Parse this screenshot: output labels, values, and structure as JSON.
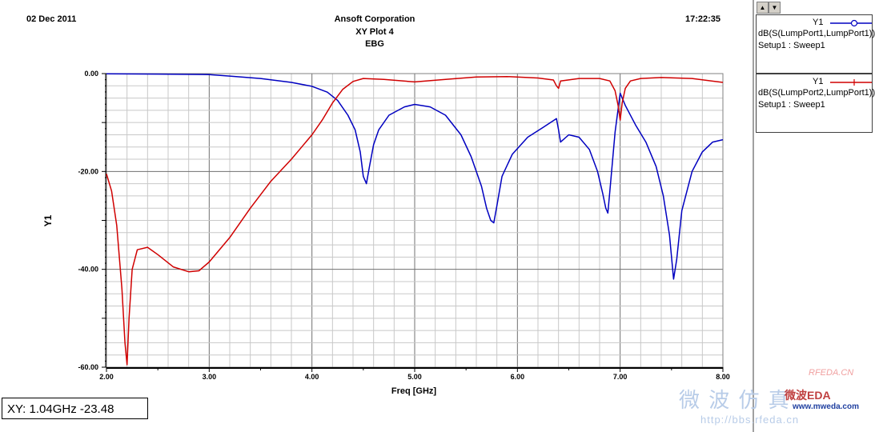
{
  "header": {
    "date": "02 Dec 2011",
    "company": "Ansoft Corporation",
    "plot_name": "XY Plot 4",
    "design": "EBG",
    "time": "17:22:35"
  },
  "legend": {
    "entries": [
      {
        "name": "Y1",
        "expr": "dB(S(LumpPort1,LumpPort1))",
        "setup": "Setup1 : Sweep1",
        "color": "#0000c0",
        "marker": "circle"
      },
      {
        "name": "Y1",
        "expr": "dB(S(LumpPort2,LumpPort1))",
        "setup": "Setup1 : Sweep1",
        "color": "#d00000",
        "marker": "plus"
      }
    ]
  },
  "readout": "XY: 1.04GHz -23.48",
  "watermark": {
    "line1": "RFEDA.CN",
    "line2": "微 波 仿 真",
    "line3": "微波EDA",
    "line4": "www.mweda.com",
    "line5": "http://bbs.rfeda.cn"
  },
  "chart_data": {
    "type": "line",
    "title": "XY Plot 4",
    "xlabel": "Freq [GHz]",
    "ylabel": "Y1",
    "xlim": [
      2.0,
      8.0
    ],
    "ylim": [
      -60.0,
      0.0
    ],
    "x_ticks": [
      "2.00",
      "3.00",
      "4.00",
      "5.00",
      "6.00",
      "7.00",
      "8.00"
    ],
    "y_ticks": [
      "0.00",
      "-20.00",
      "-40.00",
      "-60.00"
    ],
    "grid": true,
    "legend_position": "right",
    "series": [
      {
        "name": "dB(S(LumpPort1,LumpPort1))",
        "color": "#0000c0",
        "x": [
          2.0,
          2.5,
          3.0,
          3.2,
          3.5,
          3.8,
          4.0,
          4.15,
          4.25,
          4.35,
          4.42,
          4.47,
          4.5,
          4.53,
          4.56,
          4.6,
          4.65,
          4.75,
          4.9,
          5.0,
          5.15,
          5.3,
          5.45,
          5.55,
          5.65,
          5.7,
          5.74,
          5.77,
          5.8,
          5.85,
          5.95,
          6.1,
          6.25,
          6.38,
          6.4,
          6.42,
          6.5,
          6.6,
          6.7,
          6.78,
          6.83,
          6.86,
          6.88,
          6.9,
          6.95,
          7.0,
          7.05,
          7.15,
          7.25,
          7.35,
          7.42,
          7.48,
          7.52,
          7.55,
          7.6,
          7.7,
          7.8,
          7.9,
          8.0
        ],
        "y": [
          -0.05,
          -0.1,
          -0.2,
          -0.5,
          -1.0,
          -1.8,
          -2.6,
          -3.8,
          -5.5,
          -8.5,
          -11.5,
          -16.0,
          -21.0,
          -22.5,
          -19.0,
          -14.5,
          -11.5,
          -8.5,
          -6.8,
          -6.3,
          -6.8,
          -8.5,
          -12.5,
          -17.0,
          -23.0,
          -27.5,
          -30.0,
          -30.5,
          -27.0,
          -21.0,
          -16.5,
          -13.0,
          -11.0,
          -9.2,
          -11.5,
          -14.0,
          -12.5,
          -13.0,
          -15.5,
          -20.0,
          -24.5,
          -27.5,
          -28.5,
          -24.0,
          -12.0,
          -4.0,
          -6.5,
          -10.5,
          -14.0,
          -19.0,
          -25.0,
          -33.0,
          -42.0,
          -38.0,
          -28.0,
          -20.0,
          -16.0,
          -14.0,
          -13.5
        ]
      },
      {
        "name": "dB(S(LumpPort2,LumpPort1))",
        "color": "#d00000",
        "x": [
          2.0,
          2.05,
          2.1,
          2.15,
          2.18,
          2.2,
          2.22,
          2.25,
          2.3,
          2.4,
          2.5,
          2.65,
          2.8,
          2.9,
          3.0,
          3.2,
          3.4,
          3.6,
          3.8,
          3.9,
          4.0,
          4.1,
          4.2,
          4.3,
          4.4,
          4.5,
          4.7,
          5.0,
          5.3,
          5.6,
          5.9,
          6.2,
          6.35,
          6.38,
          6.4,
          6.42,
          6.6,
          6.8,
          6.9,
          6.95,
          6.98,
          7.0,
          7.02,
          7.05,
          7.1,
          7.2,
          7.4,
          7.7,
          8.0
        ],
        "y": [
          -20.5,
          -24.0,
          -31.0,
          -44.0,
          -55.0,
          -59.5,
          -50.0,
          -40.0,
          -36.0,
          -35.5,
          -37.0,
          -39.5,
          -40.5,
          -40.3,
          -38.5,
          -33.5,
          -27.5,
          -22.0,
          -17.5,
          -15.0,
          -12.5,
          -9.5,
          -6.0,
          -3.2,
          -1.6,
          -1.0,
          -1.2,
          -1.7,
          -1.2,
          -0.7,
          -0.6,
          -0.9,
          -1.3,
          -2.5,
          -3.0,
          -1.5,
          -1.0,
          -1.0,
          -1.5,
          -3.5,
          -6.5,
          -9.5,
          -6.0,
          -3.0,
          -1.5,
          -1.0,
          -0.8,
          -1.0,
          -1.8
        ]
      }
    ]
  }
}
